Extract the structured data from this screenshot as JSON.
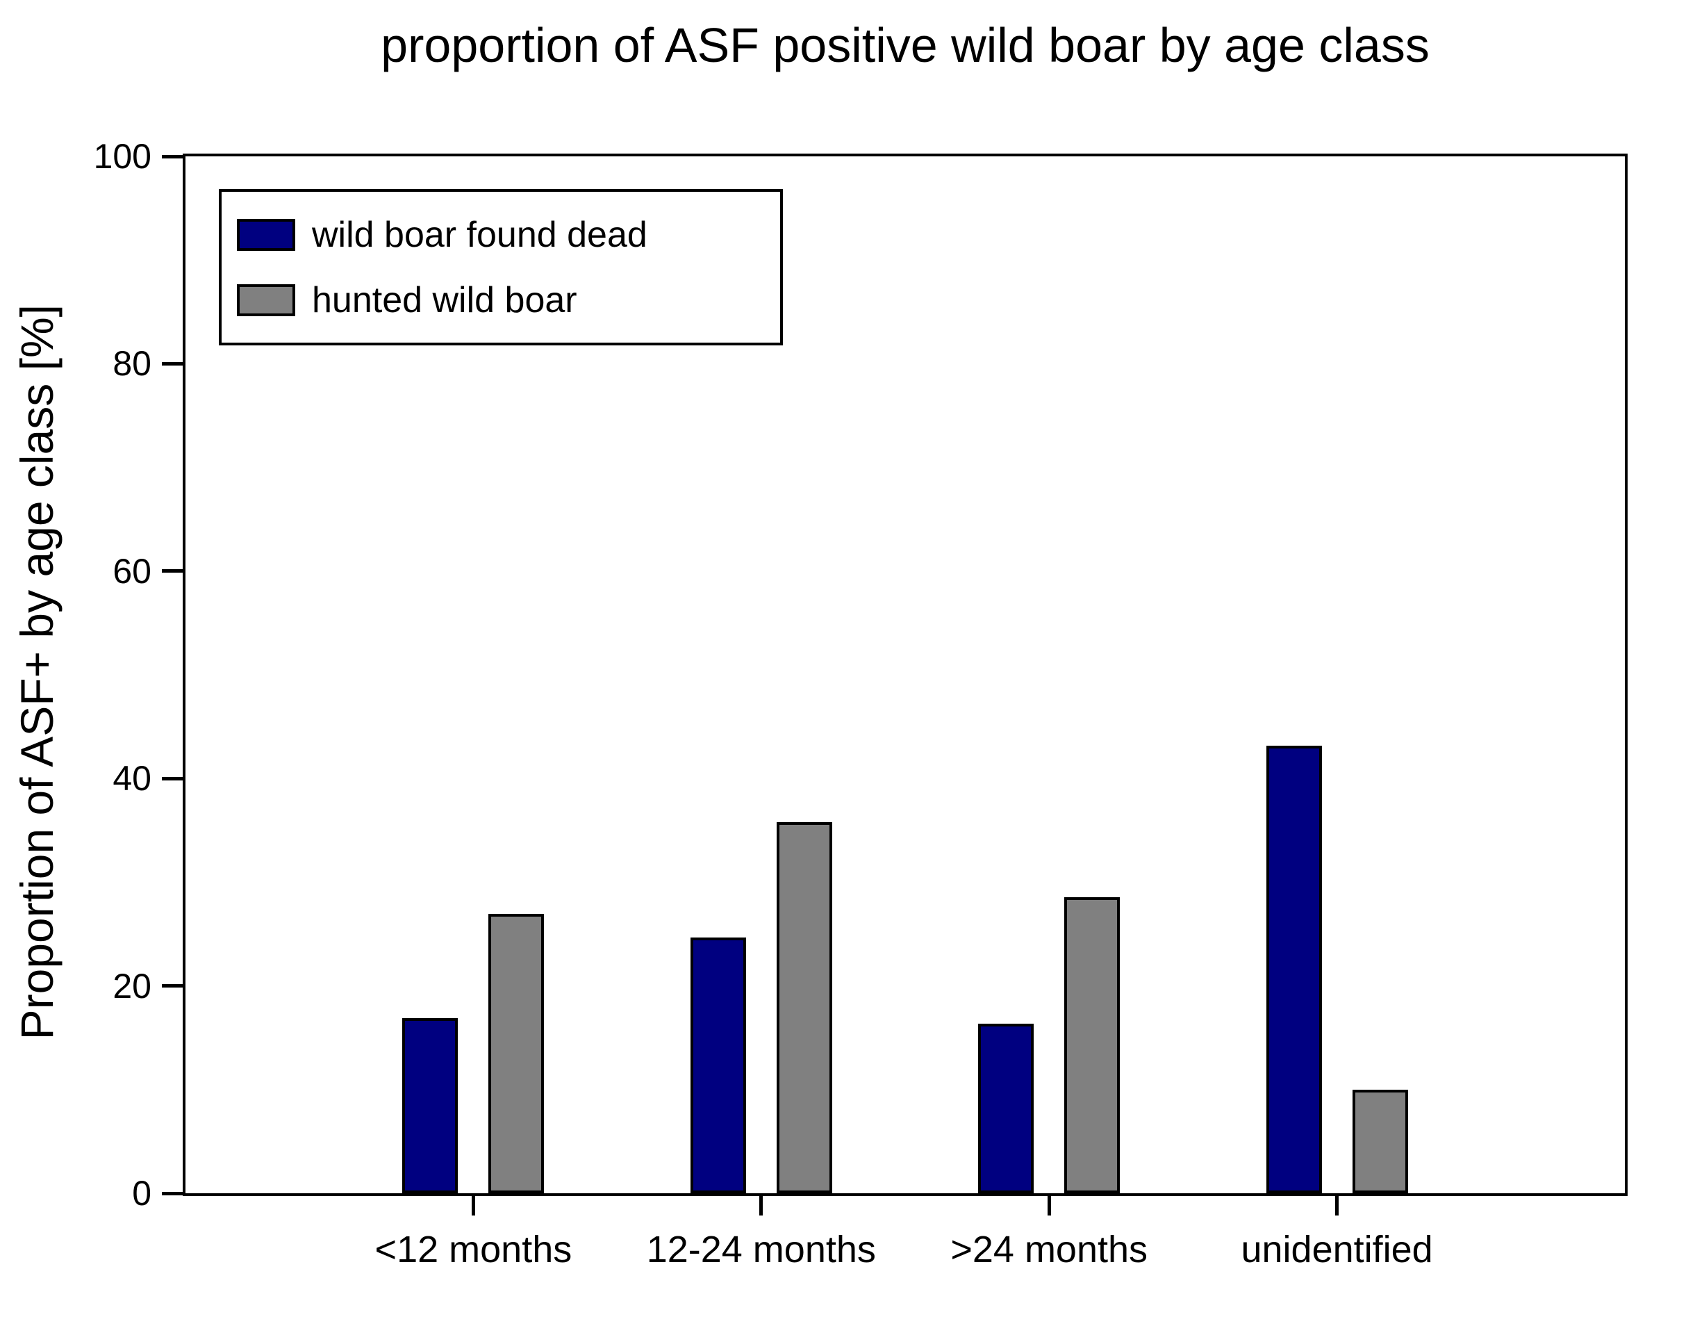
{
  "chart_data": {
    "type": "bar",
    "title": "proportion of ASF positive wild boar by age class",
    "xlabel": "",
    "ylabel": "Proportion of ASF+ by age class [%]",
    "categories": [
      "<12 months",
      "12-24 months",
      ">24 months",
      "unidentified"
    ],
    "series": [
      {
        "name": "wild boar found dead",
        "color": "#000080",
        "values": [
          16.6,
          24.4,
          16.1,
          42.9
        ]
      },
      {
        "name": "hunted wild boar",
        "color": "#808080",
        "values": [
          26.7,
          35.5,
          28.3,
          9.7
        ]
      }
    ],
    "ylim": [
      0,
      100
    ],
    "yticks": [
      0,
      20,
      40,
      60,
      80,
      100
    ],
    "grid": false,
    "legend_position": "upper-left-inside",
    "axis_color": "#000000",
    "background_color": "#ffffff"
  }
}
